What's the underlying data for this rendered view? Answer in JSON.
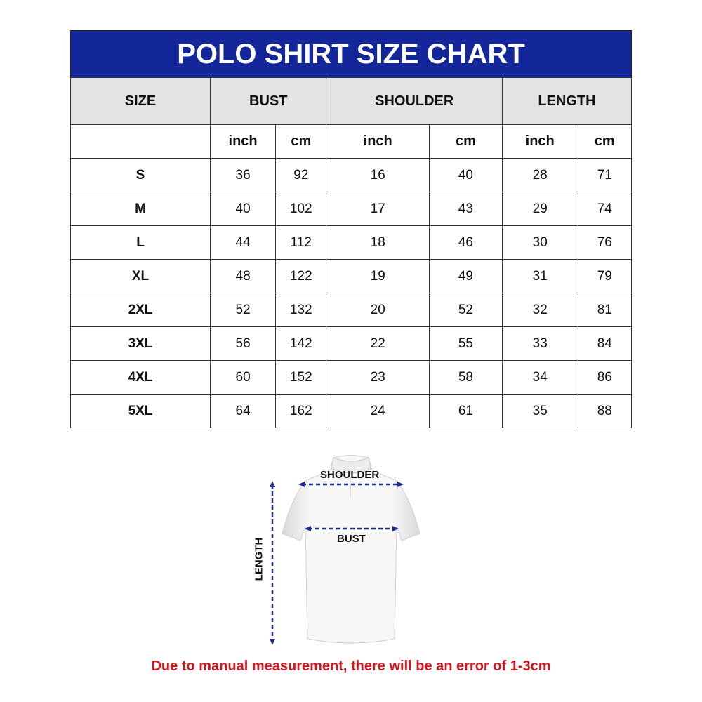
{
  "title": "POLO SHIRT SIZE CHART",
  "colors": {
    "title_bg": "#14279a",
    "header_bg": "#e3e3e3",
    "note": "#d8141c",
    "arrow": "#1f2f8f"
  },
  "headers": {
    "size": "SIZE",
    "bust": "BUST",
    "shoulder": "SHOULDER",
    "length": "LENGTH"
  },
  "units": [
    "inch",
    "cm",
    "inch",
    "cm",
    "inch",
    "cm"
  ],
  "rows": [
    {
      "size": "S",
      "values": [
        "36",
        "92",
        "16",
        "40",
        "28",
        "71"
      ]
    },
    {
      "size": "M",
      "values": [
        "40",
        "102",
        "17",
        "43",
        "29",
        "74"
      ]
    },
    {
      "size": "L",
      "values": [
        "44",
        "112",
        "18",
        "46",
        "30",
        "76"
      ]
    },
    {
      "size": "XL",
      "values": [
        "48",
        "122",
        "19",
        "49",
        "31",
        "79"
      ]
    },
    {
      "size": "2XL",
      "values": [
        "52",
        "132",
        "20",
        "52",
        "32",
        "81"
      ]
    },
    {
      "size": "3XL",
      "values": [
        "56",
        "142",
        "22",
        "55",
        "33",
        "84"
      ]
    },
    {
      "size": "4XL",
      "values": [
        "60",
        "152",
        "23",
        "58",
        "34",
        "86"
      ]
    },
    {
      "size": "5XL",
      "values": [
        "64",
        "162",
        "24",
        "61",
        "35",
        "88"
      ]
    }
  ],
  "diagram": {
    "shoulder_label": "SHOULDER",
    "bust_label": "BUST",
    "length_label": "LENGTH"
  },
  "note": "Due to manual measurement, there will be an error of 1-3cm"
}
